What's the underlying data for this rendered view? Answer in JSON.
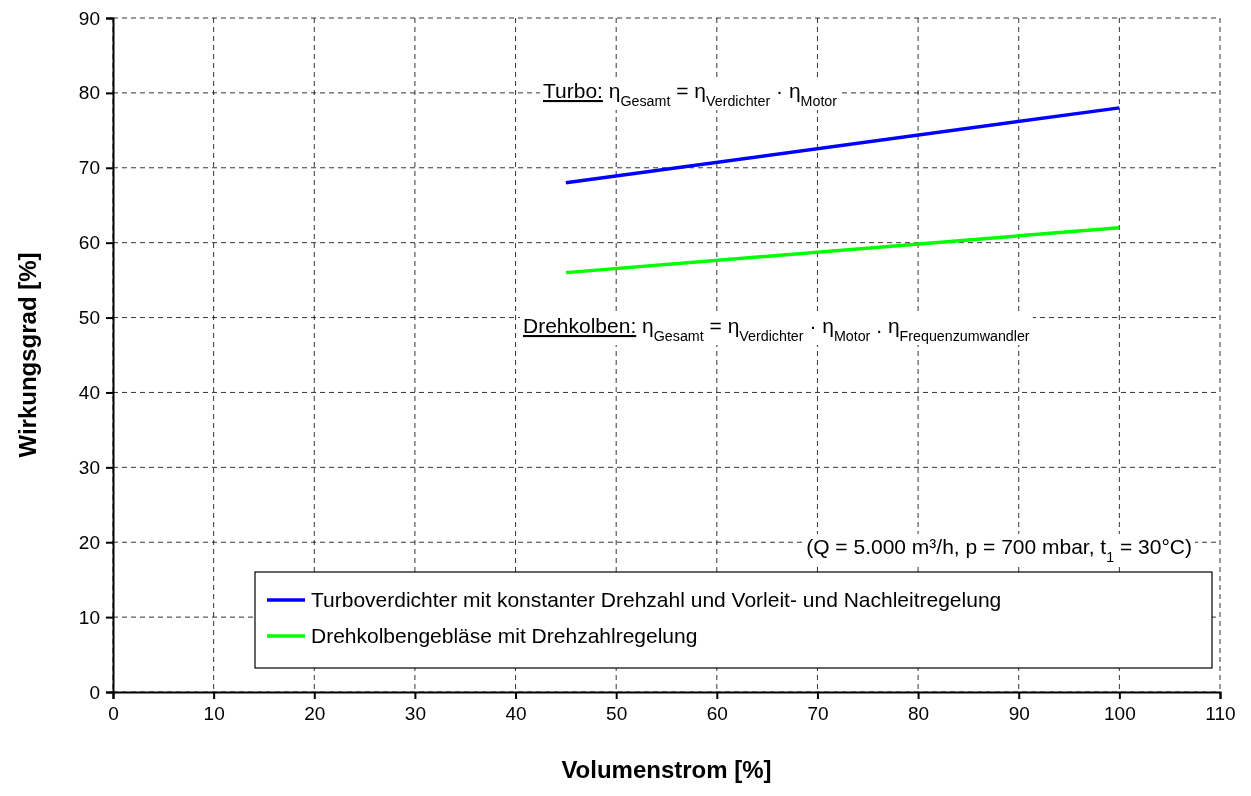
{
  "chart_data": {
    "type": "line",
    "xlabel": "Volumenstrom [%]",
    "ylabel": "Wirkungsgrad [%]",
    "xlim": [
      0,
      110
    ],
    "xticks": [
      0,
      10,
      20,
      30,
      40,
      50,
      60,
      70,
      80,
      90,
      100,
      110
    ],
    "ylim": [
      0,
      90
    ],
    "yticks": [
      0,
      10,
      20,
      30,
      40,
      50,
      60,
      70,
      80,
      90
    ],
    "grid": true,
    "legend": "bottom right",
    "line_style": "solid",
    "marker": "none",
    "x": [
      45,
      100
    ],
    "series": [
      {
        "name": "Turboverdichter mit konstanter Drehzahl und Vorleit- und Nachleitregelung",
        "color": "#0000ff",
        "values": [
          68,
          78
        ]
      },
      {
        "name": "Drehkolbengebläse mit Drehzahlregelung",
        "color": "#00ff00",
        "values": [
          56,
          62
        ]
      }
    ],
    "annotations": [
      "Turbo: η$_{Gesamt}$ = η$_{Verdichter}$ · η$_{Motor}$",
      "Drehkolben: η$_{Gesamt}$ = η$_{Verdichter}$ · η$_{Motor}$ . η$_{Frequenzumwandler}$",
      "(Q = 5.000 m³/h, p = 700 mbar, t$_{1}$ = 30°C)"
    ]
  }
}
